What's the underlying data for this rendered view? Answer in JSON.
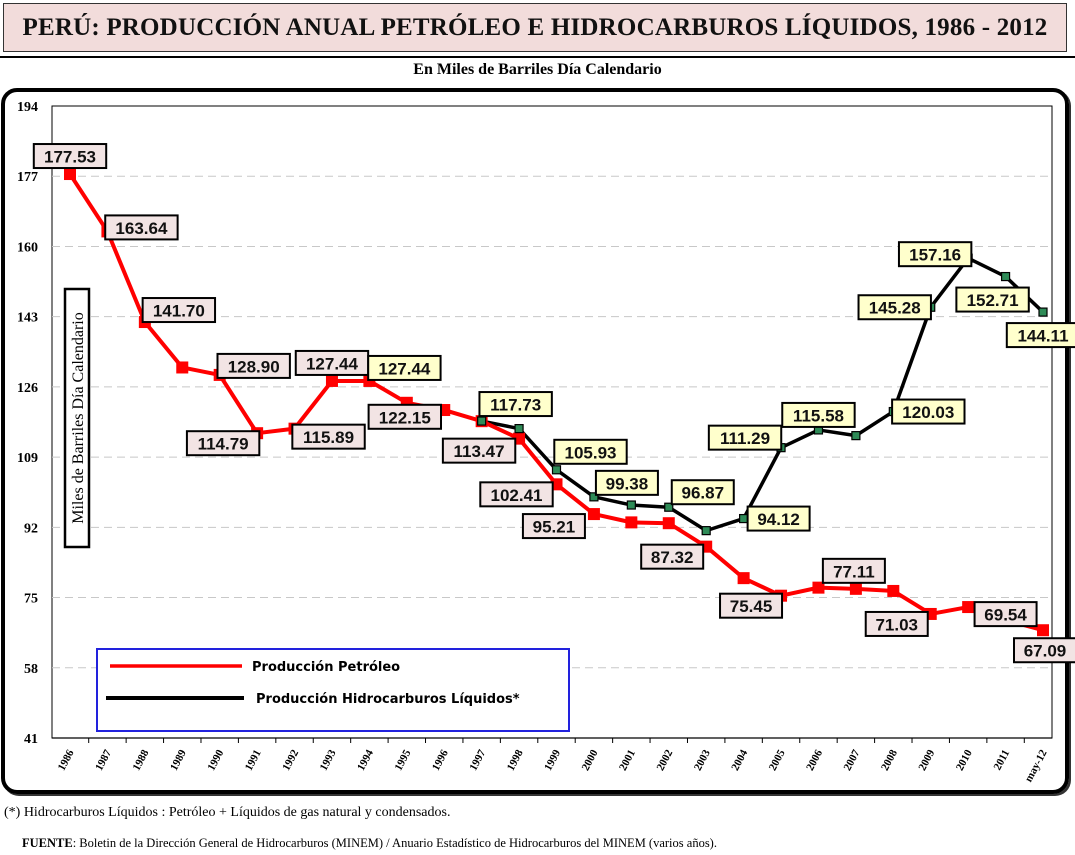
{
  "title": "PERÚ:  PRODUCCIÓN ANUAL PETRÓLEO E HIDROCARBUROS LÍQUIDOS, 1986 - 2012",
  "subtitle": "En Miles de Barriles Día Calendario",
  "footnote": "(*)  Hidrocarburos Líquidos :  Petróleo + Líquidos de gas natural y condensados.",
  "source_label": "FUENTE",
  "source_text": ": Boletin de la Dirección General de Hidrocarburos (MINEM)  / Anuario Estadístico de Hidrocarburos del MINEM (varios años).",
  "colors": {
    "petroleo": "#ff0000",
    "hidrocarburos": "#000000",
    "hidro_marker": "#2e8b57",
    "petroleo_label_bg": "#f2e4e4",
    "hidro_label_bg": "#ffffcc",
    "legend_border": "#2222dd",
    "grid": "#c8c8c8"
  },
  "chart_data": {
    "type": "line",
    "title": "PERÚ:  PRODUCCIÓN ANUAL PETRÓLEO E HIDROCARBUROS LÍQUIDOS, 1986 - 2012",
    "subtitle": "En Miles de Barriles Día Calendario",
    "xlabel": "",
    "ylabel": "Miles de Barriles Día Calendario",
    "ylim": [
      41,
      194
    ],
    "yticks": [
      194,
      177,
      160,
      143,
      126,
      109,
      92,
      75,
      58,
      41
    ],
    "grid": true,
    "legend_position": "bottom-left",
    "categories": [
      "1986",
      "1987",
      "1988",
      "1989",
      "1990",
      "1991",
      "1992",
      "1993",
      "1994",
      "1995",
      "1996",
      "1997",
      "1998",
      "1999",
      "2000",
      "2001",
      "2002",
      "2003",
      "2004",
      "2005",
      "2006",
      "2007",
      "2008",
      "2009",
      "2010",
      "2011",
      "may-12"
    ],
    "series": [
      {
        "name": "Producción  Petróleo",
        "values": [
          177.53,
          163.64,
          141.7,
          130.7,
          128.9,
          114.79,
          115.89,
          127.44,
          127.44,
          122.15,
          120.4,
          117.7,
          113.47,
          102.41,
          95.21,
          93.2,
          93.0,
          87.32,
          79.7,
          75.45,
          77.4,
          77.11,
          76.6,
          71.03,
          72.7,
          69.54,
          67.09
        ],
        "labels": [
          "177.53",
          "163.64",
          "141.70",
          null,
          "128.90",
          "114.79",
          "115.89",
          "127.44",
          null,
          "122.15",
          null,
          null,
          "113.47",
          "102.41",
          "95.21",
          null,
          null,
          "87.32",
          null,
          "75.45",
          null,
          "77.11",
          null,
          "71.03",
          null,
          "69.54",
          "67.09"
        ]
      },
      {
        "name": "Producción  Hidrocarburos  Líquidos*",
        "values": [
          null,
          null,
          null,
          null,
          null,
          null,
          null,
          null,
          127.44,
          null,
          null,
          117.73,
          115.9,
          105.93,
          99.38,
          97.4,
          96.87,
          91.2,
          94.12,
          111.29,
          115.58,
          114.2,
          120.03,
          145.28,
          157.16,
          152.71,
          144.11
        ],
        "labels": [
          null,
          null,
          null,
          null,
          null,
          null,
          null,
          null,
          "127.44",
          null,
          null,
          "117.73",
          null,
          "105.93",
          "99.38",
          null,
          "96.87",
          null,
          "94.12",
          "111.29",
          "115.58",
          null,
          "120.03",
          "145.28",
          "157.16",
          "152.71",
          "144.11"
        ],
        "line_start_index": 11
      }
    ]
  }
}
